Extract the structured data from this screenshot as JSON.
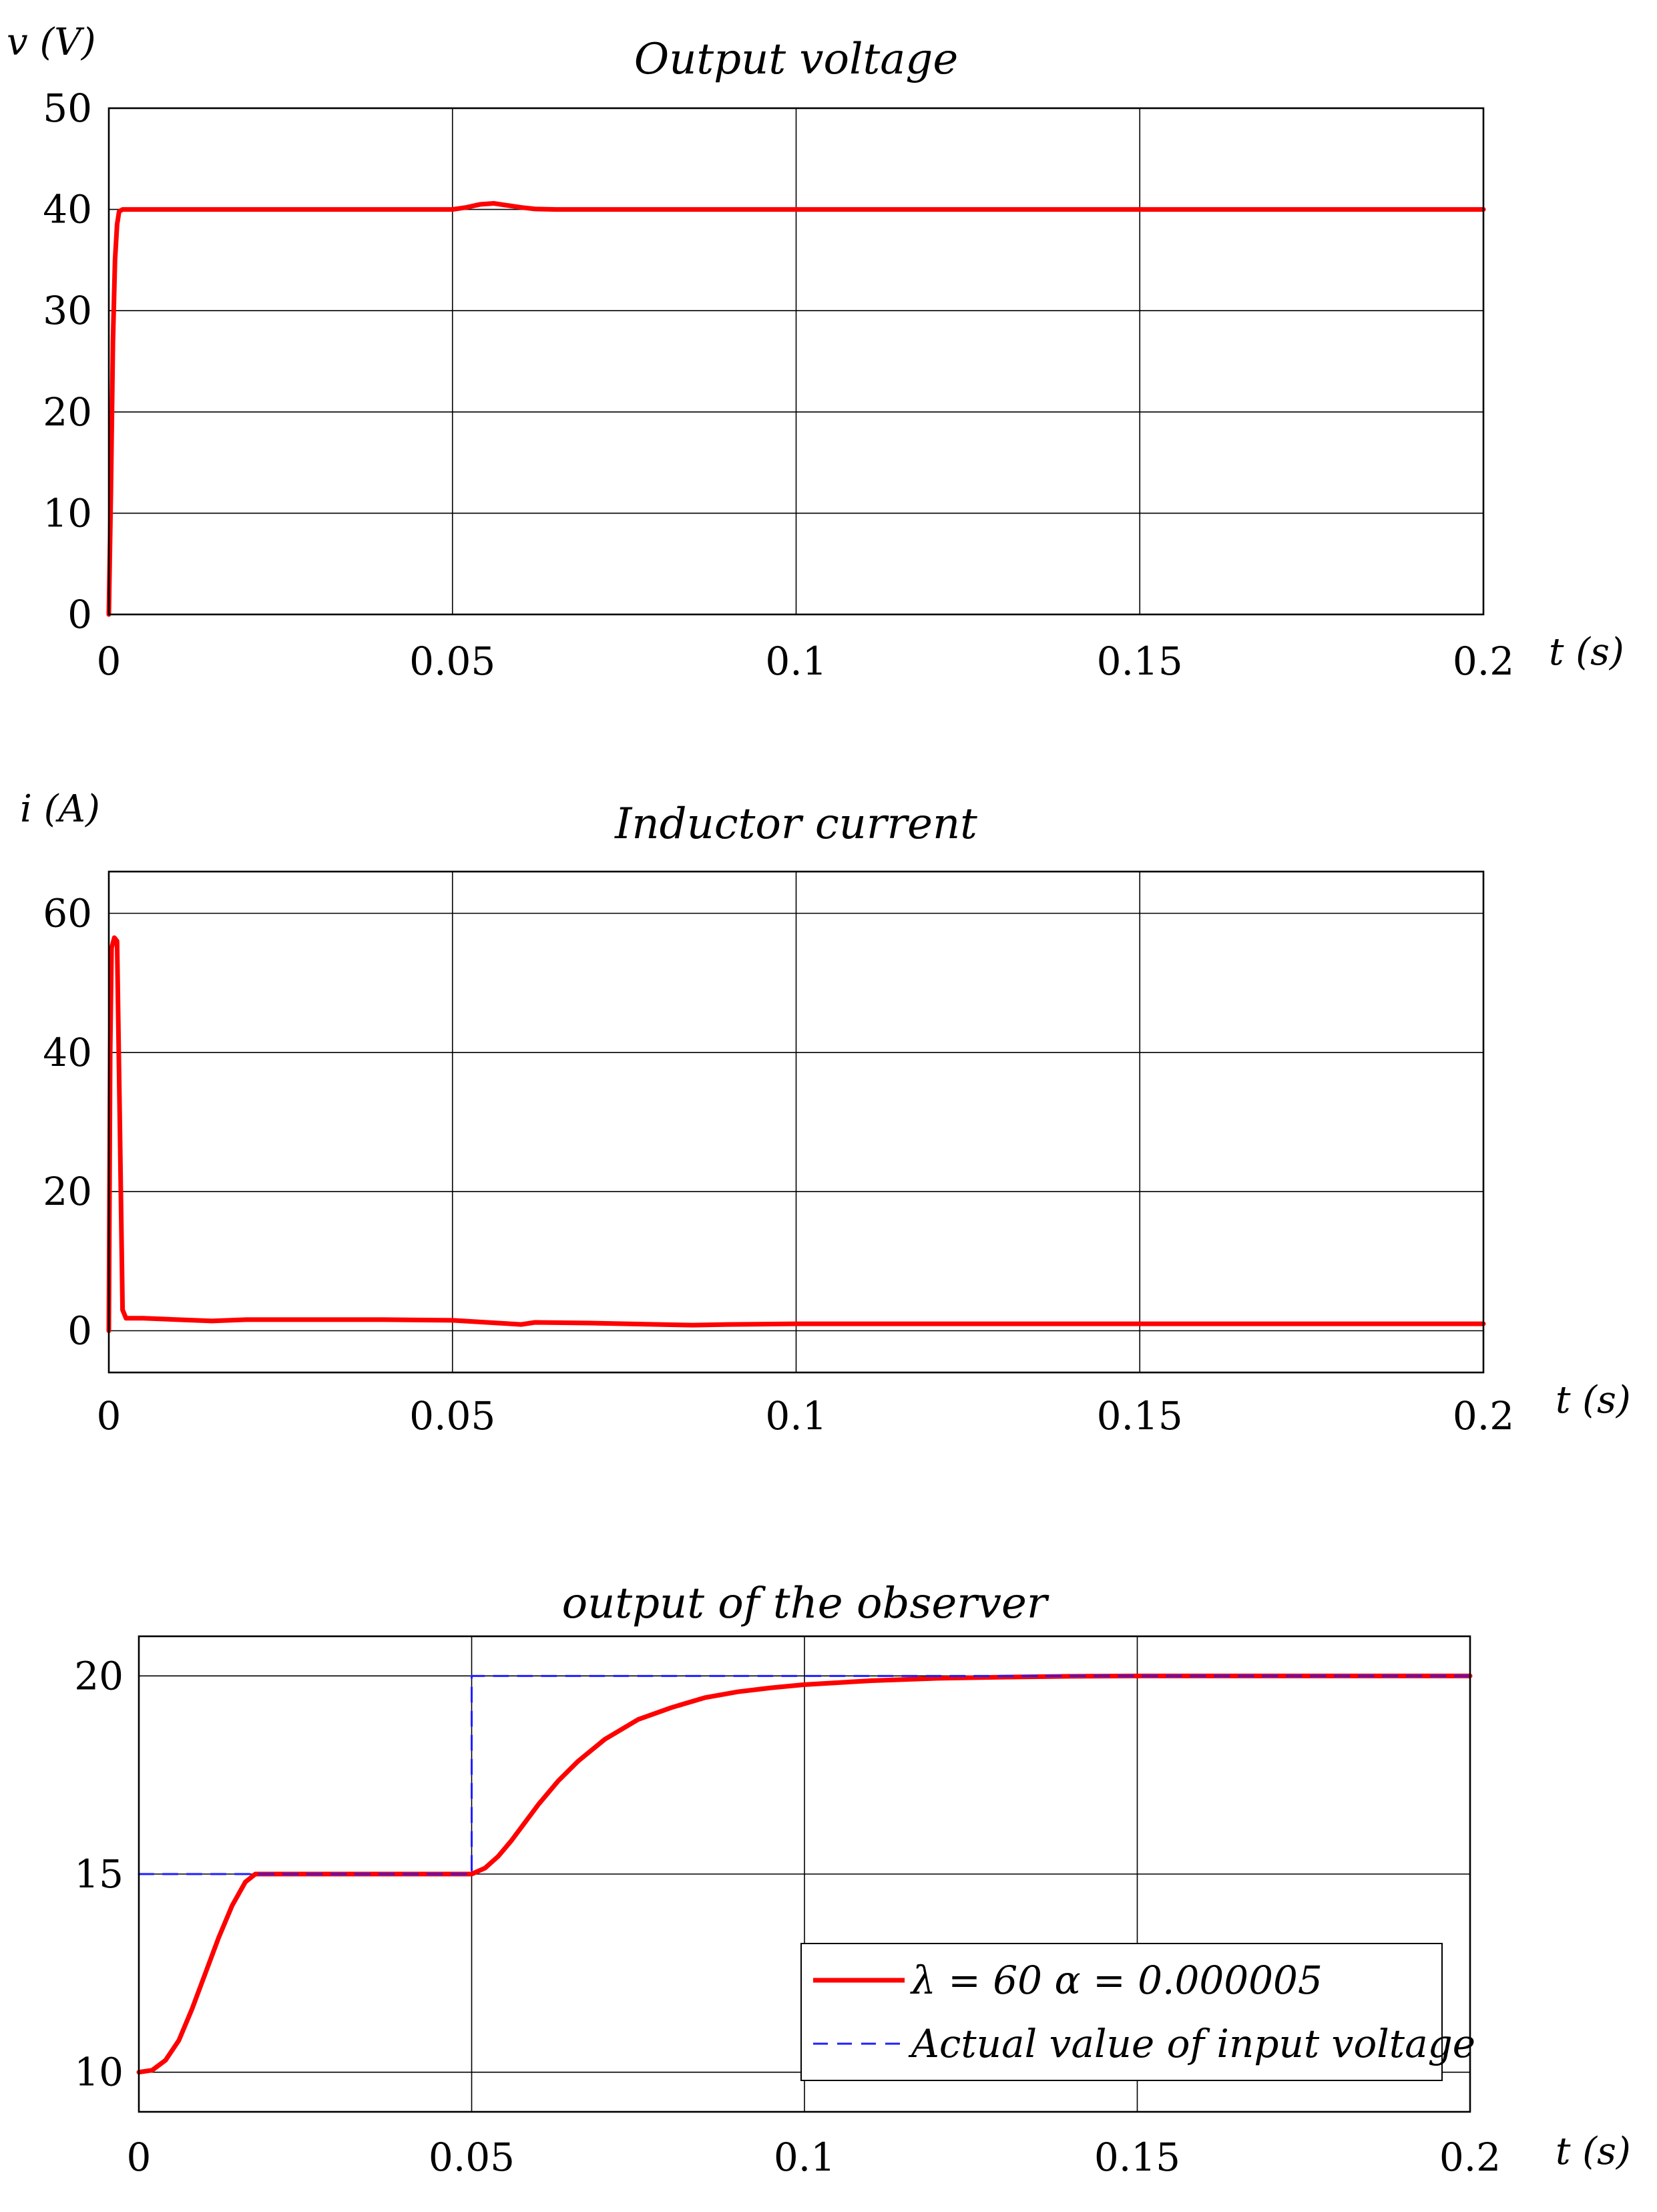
{
  "chart_data": [
    {
      "type": "line",
      "title": "Output    voltage",
      "ylabel": "v (V)",
      "xlabel": "t (s)",
      "xlim": [
        0,
        0.2
      ],
      "ylim": [
        0,
        50
      ],
      "xticks": [
        0,
        0.05,
        0.1,
        0.15,
        0.2
      ],
      "xtick_labels": [
        "0",
        "0.05",
        "0.1",
        "0.15",
        "0.2"
      ],
      "yticks": [
        0,
        10,
        20,
        30,
        40,
        50
      ],
      "ytick_labels": [
        "0",
        "10",
        "20",
        "30",
        "40",
        "50"
      ],
      "grid": true,
      "series": [
        {
          "color": "#ff0000",
          "style": "solid",
          "x": [
            0,
            0.0003,
            0.0006,
            0.0009,
            0.0012,
            0.0015,
            0.002,
            0.005,
            0.01,
            0.02,
            0.03,
            0.04,
            0.05,
            0.052,
            0.054,
            0.056,
            0.058,
            0.06,
            0.062,
            0.065,
            0.07,
            0.1,
            0.15,
            0.2
          ],
          "y": [
            0,
            12,
            27,
            35,
            38.5,
            39.8,
            40,
            40,
            40,
            40,
            40,
            40,
            40,
            40.2,
            40.5,
            40.6,
            40.4,
            40.2,
            40.05,
            40,
            40,
            40,
            40,
            40
          ]
        }
      ]
    },
    {
      "type": "line",
      "title": "Inductor    current",
      "ylabel": "i (A)",
      "xlabel": "t (s)",
      "xlim": [
        0,
        0.2
      ],
      "ylim": [
        -6,
        66
      ],
      "xticks": [
        0,
        0.05,
        0.1,
        0.15,
        0.2
      ],
      "xtick_labels": [
        "0",
        "0.05",
        "0.1",
        "0.15",
        "0.2"
      ],
      "yticks": [
        0,
        20,
        40,
        60
      ],
      "ytick_labels": [
        "0",
        "20",
        "40",
        "60"
      ],
      "grid": true,
      "series": [
        {
          "color": "#ff0000",
          "style": "solid",
          "x": [
            0,
            0.0002,
            0.0004,
            0.0008,
            0.0012,
            0.0016,
            0.002,
            0.0025,
            0.003,
            0.005,
            0.01,
            0.015,
            0.02,
            0.03,
            0.04,
            0.05,
            0.055,
            0.06,
            0.062,
            0.07,
            0.08,
            0.085,
            0.09,
            0.1,
            0.11,
            0.12,
            0.15,
            0.2
          ],
          "y": [
            0,
            40,
            55,
            56.5,
            56,
            30,
            3,
            1.8,
            1.8,
            1.8,
            1.6,
            1.4,
            1.6,
            1.6,
            1.6,
            1.5,
            1.2,
            0.9,
            1.2,
            1.1,
            0.9,
            0.8,
            0.9,
            1,
            1,
            1,
            1,
            1
          ]
        }
      ]
    },
    {
      "type": "line",
      "title": "output    of    the    observer",
      "ylabel": "",
      "xlabel": "t (s)",
      "xlim": [
        0,
        0.2
      ],
      "ylim": [
        9,
        21
      ],
      "xticks": [
        0,
        0.05,
        0.1,
        0.15,
        0.2
      ],
      "xtick_labels": [
        "0",
        "0.05",
        "0.1",
        "0.15",
        "0.2"
      ],
      "yticks": [
        10,
        15,
        20
      ],
      "ytick_labels": [
        "10",
        "15",
        "20"
      ],
      "grid": true,
      "legend_position": "bottom-right",
      "series": [
        {
          "name": "λ = 60     α = 0.000005",
          "color": "#ff0000",
          "style": "solid",
          "x": [
            0,
            0.002,
            0.004,
            0.006,
            0.008,
            0.01,
            0.012,
            0.014,
            0.016,
            0.0175,
            0.02,
            0.03,
            0.04,
            0.05,
            0.052,
            0.054,
            0.056,
            0.058,
            0.06,
            0.063,
            0.066,
            0.07,
            0.075,
            0.08,
            0.085,
            0.09,
            0.095,
            0.1,
            0.11,
            0.12,
            0.13,
            0.14,
            0.15,
            0.175,
            0.2
          ],
          "y": [
            10,
            10.05,
            10.3,
            10.8,
            11.6,
            12.5,
            13.4,
            14.2,
            14.8,
            15,
            15,
            15,
            15,
            15,
            15.15,
            15.45,
            15.85,
            16.3,
            16.75,
            17.35,
            17.85,
            18.4,
            18.9,
            19.2,
            19.45,
            19.6,
            19.7,
            19.78,
            19.88,
            19.94,
            19.97,
            19.99,
            20,
            20,
            20
          ]
        },
        {
          "name": "Actual value of input voltage",
          "color": "#1f1fff",
          "style": "dashed",
          "x": [
            0,
            0.05,
            0.05,
            0.2
          ],
          "y": [
            15,
            15,
            20,
            20
          ]
        }
      ]
    }
  ]
}
